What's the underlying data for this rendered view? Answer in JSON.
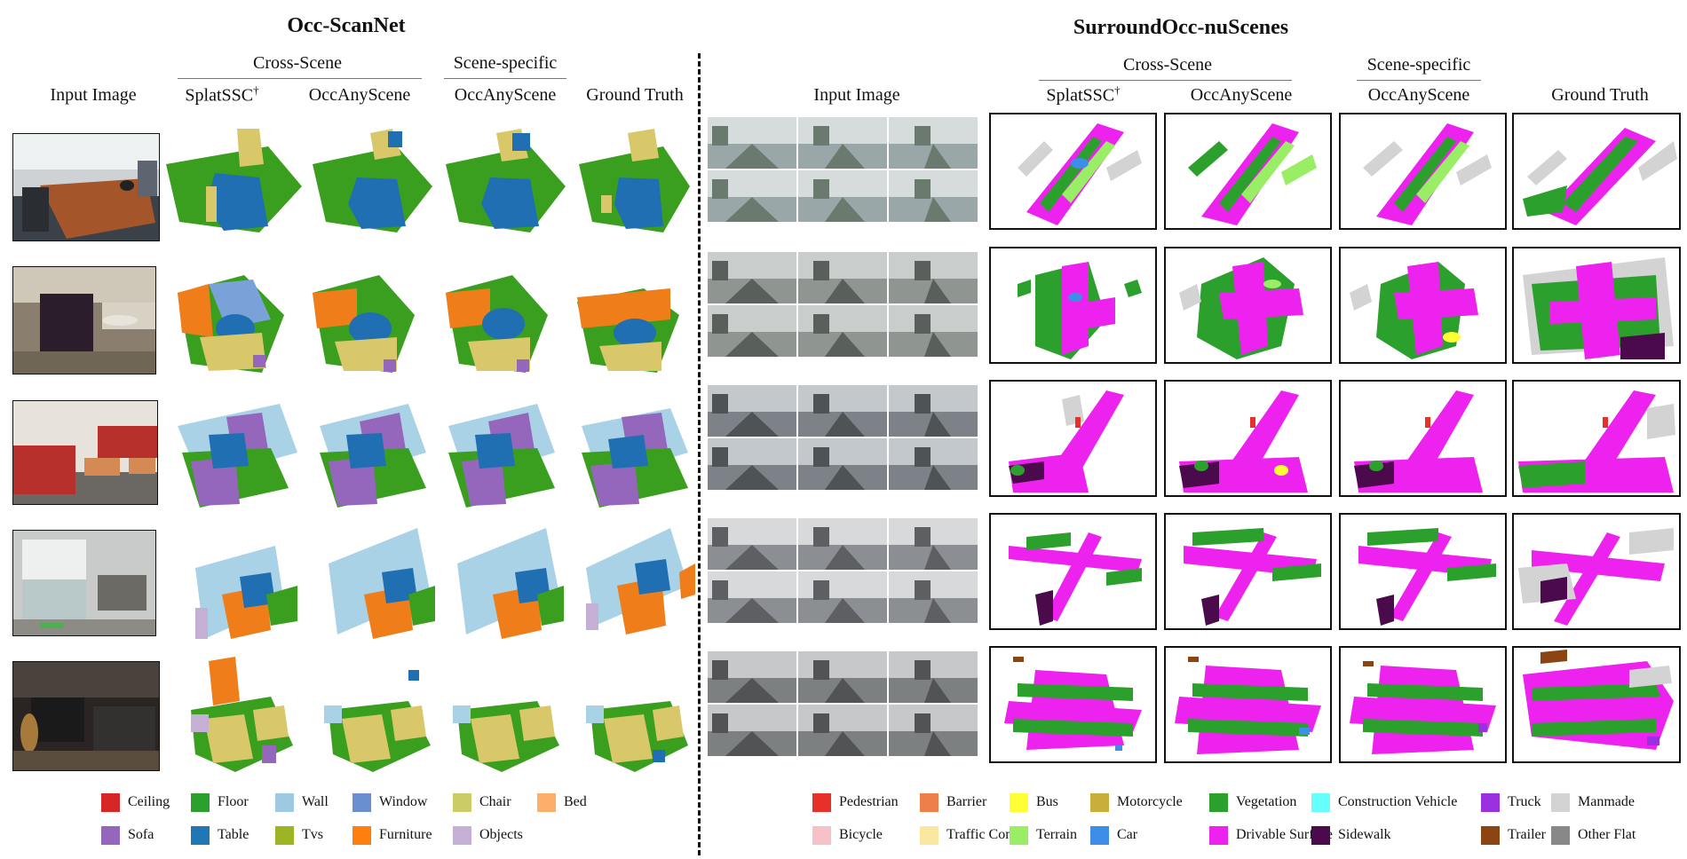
{
  "left_section": {
    "title": "Occ-ScanNet",
    "col_input": "Input Image",
    "group_cross": "Cross-Scene",
    "group_specific": "Scene-specific",
    "col_splatssc": "SplatSSC",
    "col_splatssc_sup": "†",
    "col_occany_cross": "OccAnyScene",
    "col_occany_specific": "OccAnyScene",
    "col_gt": "Ground Truth"
  },
  "right_section": {
    "title": "SurroundOcc-nuScenes",
    "col_input": "Input Image",
    "group_cross": "Cross-Scene",
    "group_specific": "Scene-specific",
    "col_splatssc": "SplatSSC",
    "col_splatssc_sup": "†",
    "col_occany_cross": "OccAnyScene",
    "col_occany_specific": "OccAnyScene",
    "col_gt": "Ground Truth"
  },
  "left_legend": [
    {
      "label": "Ceiling",
      "color": "#d62728"
    },
    {
      "label": "Floor",
      "color": "#2ca02c"
    },
    {
      "label": "Wall",
      "color": "#9ecae1"
    },
    {
      "label": "Window",
      "color": "#6a8fd0"
    },
    {
      "label": "Chair",
      "color": "#cccc66"
    },
    {
      "label": "Bed",
      "color": "#fdae6b"
    },
    {
      "label": "Sofa",
      "color": "#9467bd"
    },
    {
      "label": "Table",
      "color": "#1f77b4"
    },
    {
      "label": "Tvs",
      "color": "#9bb524"
    },
    {
      "label": "Furniture",
      "color": "#ff7f0e"
    },
    {
      "label": "Objects",
      "color": "#c5b0d5"
    }
  ],
  "right_legend": [
    {
      "label": "Pedestrian",
      "color": "#e8302a"
    },
    {
      "label": "Barrier",
      "color": "#ef7f4a"
    },
    {
      "label": "Bus",
      "color": "#ffff33"
    },
    {
      "label": "Motorcycle",
      "color": "#c8ae3a"
    },
    {
      "label": "Vegetation",
      "color": "#2ca02c"
    },
    {
      "label": "Construction Vehicle",
      "color": "#66ffff"
    },
    {
      "label": "Truck",
      "color": "#9b30e0"
    },
    {
      "label": "Manmade",
      "color": "#d3d3d3"
    },
    {
      "label": "Bicycle",
      "color": "#f4c2c8"
    },
    {
      "label": "Traffic Cone",
      "color": "#fbe8a0"
    },
    {
      "label": "Terrain",
      "color": "#99ee66"
    },
    {
      "label": "Car",
      "color": "#3d8ee8"
    },
    {
      "label": "Drivable Surface",
      "color": "#ee22ee"
    },
    {
      "label": "Sidewalk",
      "color": "#4b0a4b"
    },
    {
      "label": "Trailer",
      "color": "#8b4513"
    },
    {
      "label": "Other Flat",
      "color": "#888888"
    }
  ]
}
